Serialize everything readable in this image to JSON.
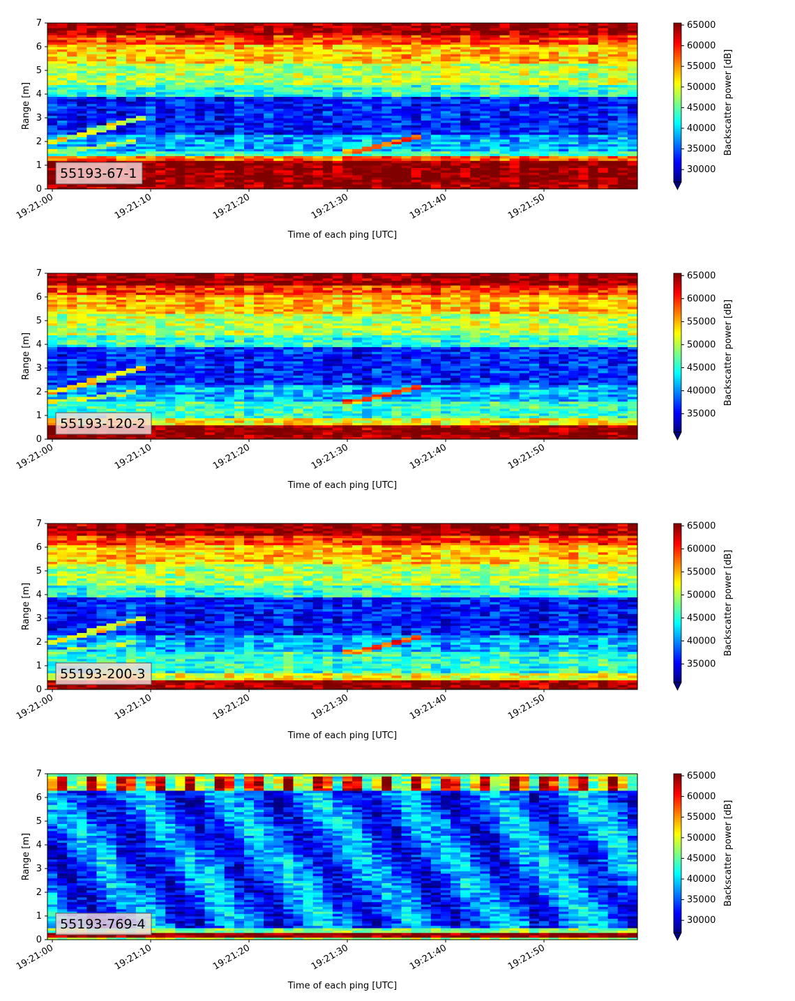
{
  "chart_data": [
    {
      "type": "heatmap",
      "label": "55193-67-1",
      "xlabel": "Time of each ping [UTC]",
      "ylabel": "Range [m]",
      "colorbar_label": "Backscatter power [dB]",
      "colormap": "jet",
      "xlim": [
        "19:20:59.5",
        "19:21:59.5"
      ],
      "x_ticks": [
        "19:21:00",
        "19:21:10",
        "19:21:20",
        "19:21:30",
        "19:21:40",
        "19:21:50"
      ],
      "ylim": [
        0,
        7
      ],
      "y_ticks": [
        0,
        1,
        2,
        3,
        4,
        5,
        6,
        7
      ],
      "clim": [
        27000,
        65500
      ],
      "colorbar_ticks": [
        30000,
        35000,
        40000,
        45000,
        50000,
        55000,
        60000,
        65000
      ],
      "grid": false
    },
    {
      "type": "heatmap",
      "label": "55193-120-2",
      "xlabel": "Time of each ping [UTC]",
      "ylabel": "Range [m]",
      "colorbar_label": "Backscatter power [dB]",
      "colormap": "jet",
      "xlim": [
        "19:20:59.5",
        "19:21:59.5"
      ],
      "x_ticks": [
        "19:21:00",
        "19:21:10",
        "19:21:20",
        "19:21:30",
        "19:21:40",
        "19:21:50"
      ],
      "ylim": [
        0,
        7
      ],
      "y_ticks": [
        0,
        1,
        2,
        3,
        4,
        5,
        6,
        7
      ],
      "clim": [
        31000,
        65500
      ],
      "colorbar_ticks": [
        35000,
        40000,
        45000,
        50000,
        55000,
        60000,
        65000
      ],
      "grid": false
    },
    {
      "type": "heatmap",
      "label": "55193-200-3",
      "xlabel": "Time of each ping [UTC]",
      "ylabel": "Range [m]",
      "colorbar_label": "Backscatter power [dB]",
      "colormap": "jet",
      "xlim": [
        "19:20:59.5",
        "19:21:59.5"
      ],
      "x_ticks": [
        "19:21:00",
        "19:21:10",
        "19:21:20",
        "19:21:30",
        "19:21:40",
        "19:21:50"
      ],
      "ylim": [
        0,
        7
      ],
      "y_ticks": [
        0,
        1,
        2,
        3,
        4,
        5,
        6,
        7
      ],
      "clim": [
        31000,
        65500
      ],
      "colorbar_ticks": [
        35000,
        40000,
        45000,
        50000,
        55000,
        60000,
        65000
      ],
      "grid": false
    },
    {
      "type": "heatmap",
      "label": "55193-769-4",
      "xlabel": "Time of each ping [UTC]",
      "ylabel": "Range [m]",
      "colorbar_label": "Backscatter power [dB]",
      "colormap": "jet",
      "xlim": [
        "19:20:59.5",
        "19:21:59.5"
      ],
      "x_ticks": [
        "19:21:00",
        "19:21:10",
        "19:21:20",
        "19:21:30",
        "19:21:40",
        "19:21:50"
      ],
      "ylim": [
        0,
        7
      ],
      "y_ticks": [
        0,
        1,
        2,
        3,
        4,
        5,
        6,
        7
      ],
      "clim": [
        27000,
        65500
      ],
      "colorbar_ticks": [
        30000,
        35000,
        40000,
        45000,
        50000,
        55000,
        60000,
        65000
      ],
      "grid": false
    }
  ]
}
